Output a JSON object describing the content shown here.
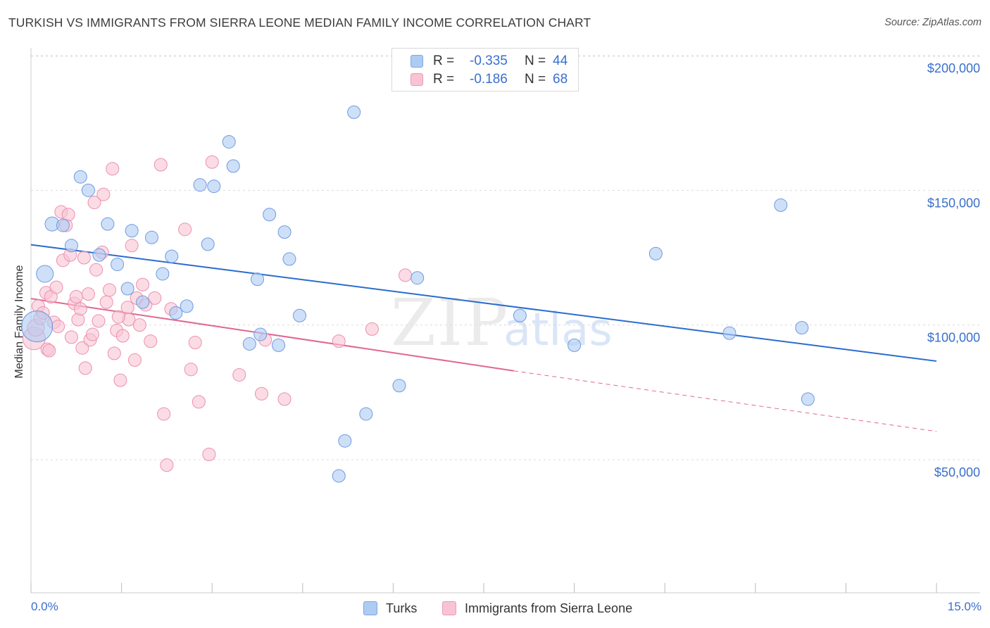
{
  "header": {
    "title": "TURKISH VS IMMIGRANTS FROM SIERRA LEONE MEDIAN FAMILY INCOME CORRELATION CHART",
    "source": "Source: ZipAtlas.com"
  },
  "watermark": {
    "zip": "ZIP",
    "atlas": "atlas"
  },
  "legend": {
    "rows": [
      {
        "r_label": "R =",
        "r_value": "-0.335",
        "n_label": "N =",
        "n_value": "44",
        "color": "#aecbf3",
        "border": "#7ea5e6"
      },
      {
        "r_label": "R =",
        "r_value": "-0.186",
        "n_label": "N =",
        "n_value": "68",
        "color": "#f8c4d4",
        "border": "#ec9ab4"
      }
    ]
  },
  "bottom_legend": {
    "turks": "Turks",
    "sierra": "Immigrants from Sierra Leone"
  },
  "x_axis": {
    "min_label": "0.0%",
    "max_label": "15.0%"
  },
  "chart_data": {
    "type": "scatter",
    "title": "TURKISH VS IMMIGRANTS FROM SIERRA LEONE MEDIAN FAMILY INCOME CORRELATION CHART",
    "xlabel": "",
    "ylabel": "Median Family Income",
    "xlim": [
      0,
      15
    ],
    "ylim": [
      0,
      205000
    ],
    "y_ticks": [
      {
        "value": 50000,
        "label": "$50,000"
      },
      {
        "value": 100000,
        "label": "$100,000"
      },
      {
        "value": 150000,
        "label": "$150,000"
      },
      {
        "value": 200000,
        "label": "$200,000"
      }
    ],
    "x_ticks": [
      0,
      1.5,
      3,
      4.5,
      6,
      7.5,
      9,
      10.5,
      12,
      13.5,
      15
    ],
    "grid": true,
    "series": [
      {
        "name": "Turks",
        "color": "#aecbf3",
        "stroke": "#6f9ae0",
        "trend": {
          "x": [
            0,
            15
          ],
          "y": [
            129800,
            86600
          ],
          "color": "#2a6ccf"
        },
        "points": [
          [
            0.1,
            99500,
            22
          ],
          [
            0.23,
            119000,
            12
          ],
          [
            0.35,
            137500,
            10
          ],
          [
            0.53,
            137000,
            9
          ],
          [
            0.67,
            129500,
            9
          ],
          [
            0.82,
            155000,
            9
          ],
          [
            0.95,
            150000,
            9
          ],
          [
            1.13,
            126000,
            9
          ],
          [
            1.27,
            137500,
            9
          ],
          [
            1.43,
            122500,
            9
          ],
          [
            1.6,
            113500,
            9
          ],
          [
            1.67,
            135000,
            9
          ],
          [
            1.85,
            108500,
            9
          ],
          [
            2.0,
            132500,
            9
          ],
          [
            2.18,
            119000,
            9
          ],
          [
            2.33,
            125500,
            9
          ],
          [
            2.4,
            104500,
            9
          ],
          [
            2.58,
            107000,
            9
          ],
          [
            2.8,
            152000,
            9
          ],
          [
            2.93,
            130000,
            9
          ],
          [
            3.03,
            151500,
            9
          ],
          [
            3.28,
            168000,
            9
          ],
          [
            3.35,
            159000,
            9
          ],
          [
            3.62,
            93000,
            9
          ],
          [
            3.8,
            96500,
            9
          ],
          [
            3.75,
            117000,
            9
          ],
          [
            3.95,
            141000,
            9
          ],
          [
            4.1,
            92500,
            9
          ],
          [
            4.2,
            134500,
            9
          ],
          [
            4.28,
            124500,
            9
          ],
          [
            4.45,
            103500,
            9
          ],
          [
            5.1,
            44000,
            9
          ],
          [
            5.2,
            57000,
            9
          ],
          [
            5.35,
            179000,
            9
          ],
          [
            5.55,
            67000,
            9
          ],
          [
            6.1,
            77500,
            9
          ],
          [
            6.4,
            117500,
            9
          ],
          [
            8.1,
            103500,
            9
          ],
          [
            9.0,
            92500,
            9
          ],
          [
            10.35,
            126500,
            9
          ],
          [
            11.57,
            97000,
            9
          ],
          [
            12.42,
            144500,
            9
          ],
          [
            12.77,
            99000,
            9
          ],
          [
            12.87,
            72500,
            9
          ]
        ]
      },
      {
        "name": "Immigrants from Sierra Leone",
        "color": "#f8c4d4",
        "stroke": "#ec8fae",
        "trend": {
          "x": [
            0,
            8.0
          ],
          "y": [
            109800,
            83000
          ],
          "color": "#e06891",
          "dash_to": [
            15,
            60500
          ]
        },
        "points": [
          [
            0.05,
            95000,
            16
          ],
          [
            0.08,
            99000,
            12
          ],
          [
            0.12,
            107000,
            9
          ],
          [
            0.15,
            102500,
            9
          ],
          [
            0.2,
            104500,
            9
          ],
          [
            0.25,
            112000,
            9
          ],
          [
            0.27,
            91000,
            9
          ],
          [
            0.3,
            90500,
            9
          ],
          [
            0.33,
            110500,
            9
          ],
          [
            0.38,
            101000,
            9
          ],
          [
            0.42,
            114000,
            9
          ],
          [
            0.45,
            99500,
            9
          ],
          [
            0.5,
            142000,
            9
          ],
          [
            0.53,
            124000,
            9
          ],
          [
            0.58,
            137000,
            9
          ],
          [
            0.62,
            141000,
            9
          ],
          [
            0.67,
            95500,
            9
          ],
          [
            0.72,
            108000,
            9
          ],
          [
            0.75,
            110500,
            9
          ],
          [
            0.78,
            102000,
            9
          ],
          [
            0.82,
            106000,
            9
          ],
          [
            0.85,
            91500,
            9
          ],
          [
            0.88,
            125000,
            9
          ],
          [
            0.9,
            84000,
            9
          ],
          [
            0.95,
            111500,
            9
          ],
          [
            0.98,
            94500,
            9
          ],
          [
            1.02,
            96500,
            9
          ],
          [
            1.05,
            145500,
            9
          ],
          [
            1.08,
            120500,
            9
          ],
          [
            1.12,
            101500,
            9
          ],
          [
            1.18,
            127000,
            9
          ],
          [
            1.2,
            148500,
            9
          ],
          [
            1.25,
            108500,
            9
          ],
          [
            1.3,
            113000,
            9
          ],
          [
            1.35,
            158000,
            9
          ],
          [
            1.38,
            89500,
            9
          ],
          [
            1.42,
            98000,
            9
          ],
          [
            1.48,
            79500,
            9
          ],
          [
            1.52,
            96000,
            9
          ],
          [
            1.6,
            106500,
            9
          ],
          [
            1.62,
            102000,
            9
          ],
          [
            1.67,
            129500,
            9
          ],
          [
            1.72,
            87000,
            9
          ],
          [
            1.75,
            110000,
            9
          ],
          [
            1.8,
            100000,
            9
          ],
          [
            1.85,
            115000,
            9
          ],
          [
            1.9,
            107500,
            9
          ],
          [
            1.98,
            94000,
            9
          ],
          [
            2.05,
            110000,
            9
          ],
          [
            2.15,
            159500,
            9
          ],
          [
            2.2,
            67000,
            9
          ],
          [
            2.25,
            48000,
            9
          ],
          [
            2.32,
            106000,
            9
          ],
          [
            2.55,
            135500,
            9
          ],
          [
            2.65,
            83500,
            9
          ],
          [
            2.72,
            93500,
            9
          ],
          [
            2.78,
            71500,
            9
          ],
          [
            2.95,
            52000,
            9
          ],
          [
            3.0,
            160500,
            9
          ],
          [
            3.45,
            81500,
            9
          ],
          [
            3.82,
            74500,
            9
          ],
          [
            3.88,
            94500,
            9
          ],
          [
            4.2,
            72500,
            9
          ],
          [
            5.1,
            94000,
            9
          ],
          [
            5.65,
            98500,
            9
          ],
          [
            6.2,
            118500,
            9
          ],
          [
            0.65,
            126000,
            9
          ],
          [
            1.45,
            103000,
            9
          ]
        ]
      }
    ]
  }
}
